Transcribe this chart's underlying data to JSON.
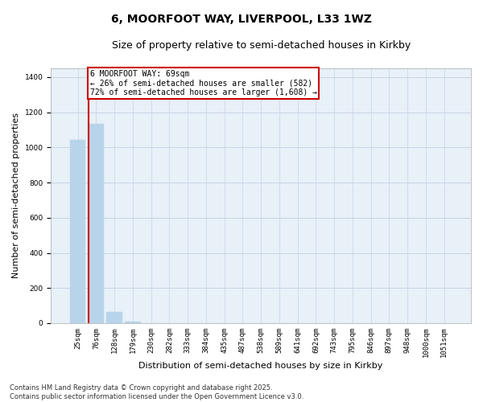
{
  "title": "6, MOORFOOT WAY, LIVERPOOL, L33 1WZ",
  "subtitle": "Size of property relative to semi-detached houses in Kirkby",
  "xlabel": "Distribution of semi-detached houses by size in Kirkby",
  "ylabel": "Number of semi-detached properties",
  "categories": [
    "25sqm",
    "76sqm",
    "128sqm",
    "179sqm",
    "230sqm",
    "282sqm",
    "333sqm",
    "384sqm",
    "435sqm",
    "487sqm",
    "538sqm",
    "589sqm",
    "641sqm",
    "692sqm",
    "743sqm",
    "795sqm",
    "846sqm",
    "897sqm",
    "948sqm",
    "1000sqm",
    "1051sqm"
  ],
  "values": [
    1045,
    1135,
    65,
    10,
    0,
    0,
    0,
    0,
    0,
    0,
    0,
    0,
    0,
    0,
    0,
    0,
    0,
    0,
    0,
    0,
    0
  ],
  "bar_color": "#b8d4ea",
  "red_line_index": 1,
  "red_line_color": "#cc0000",
  "annotation_text": "6 MOORFOOT WAY: 69sqm\n← 26% of semi-detached houses are smaller (582)\n72% of semi-detached houses are larger (1,608) →",
  "annotation_box_color": "#cc0000",
  "ylim": [
    0,
    1450
  ],
  "yticks": [
    0,
    200,
    400,
    600,
    800,
    1000,
    1200,
    1400
  ],
  "grid_color": "#c8d4e4",
  "background_color": "#e8f0f8",
  "footer": "Contains HM Land Registry data © Crown copyright and database right 2025.\nContains public sector information licensed under the Open Government Licence v3.0.",
  "title_fontsize": 10,
  "subtitle_fontsize": 9,
  "ylabel_fontsize": 8,
  "xlabel_fontsize": 8,
  "tick_fontsize": 6.5,
  "annotation_fontsize": 7,
  "footer_fontsize": 6
}
